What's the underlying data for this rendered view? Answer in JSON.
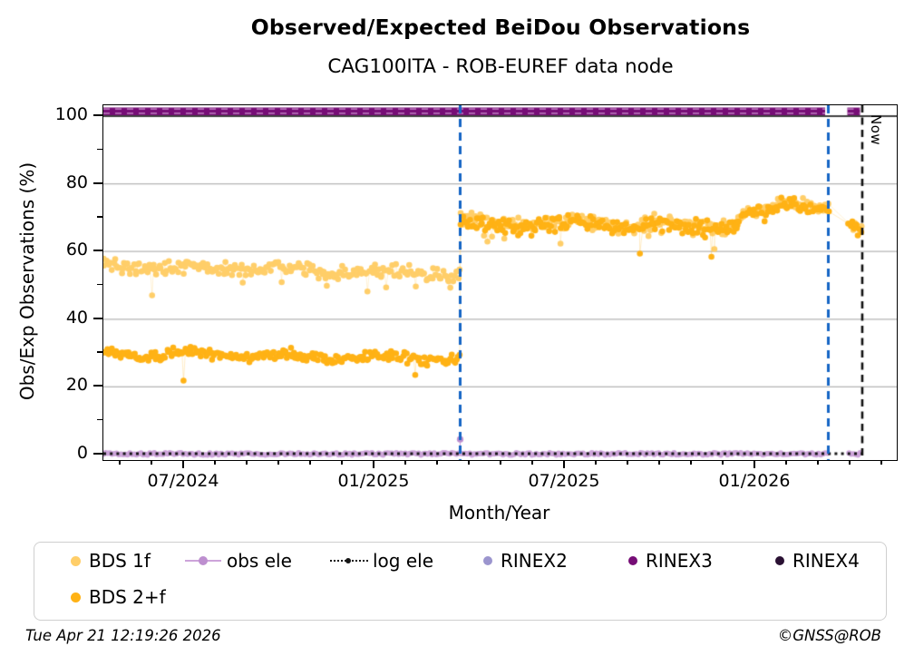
{
  "title": "Observed/Expected BeiDou Observations",
  "subtitle": "CAG100ITA - ROB-EUREF data node",
  "now_label": "Now",
  "footer": {
    "timestamp": "Tue Apr 21 12:19:26 2026",
    "copyright": "©GNSS@ROB"
  },
  "axes": {
    "ylabel": "Obs/Exp Observations (%)",
    "xlabel": "Month/Year",
    "yticks": [
      0,
      20,
      40,
      60,
      80,
      100
    ],
    "yminor": [
      10,
      30,
      50,
      70,
      90
    ],
    "xtick_labels": [
      "07/2024",
      "01/2025",
      "07/2025",
      "01/2026"
    ]
  },
  "legend": {
    "items": [
      {
        "label": "BDS 1f"
      },
      {
        "label": "obs ele"
      },
      {
        "label": "log ele"
      },
      {
        "label": "RINEX2"
      },
      {
        "label": "RINEX3"
      },
      {
        "label": "RINEX4"
      },
      {
        "label": "BDS 2+f"
      }
    ]
  },
  "colors": {
    "bds1f": "#ffce69",
    "bds2f": "#ffb215",
    "obsele": "#cda4da",
    "obsele_dot": "#bd8fcf",
    "logele": "#151515",
    "rinex2": "#9b95ce",
    "rinex3": "#760d76",
    "rinex4": "#2a1133",
    "event_blue": "#1565c5",
    "now_black": "#111111",
    "grid": "#b3b3b3",
    "ref100": "#000000"
  },
  "chart_data": {
    "type": "scatter",
    "title": "Observed/Expected BeiDou Observations",
    "subtitle": "CAG100ITA - ROB-EUREF data node",
    "xlabel": "Month/Year",
    "ylabel": "Obs/Exp Observations (%)",
    "x_unit": "months relative to 2024-07-01",
    "xlim": [
      -2.55,
      22.45
    ],
    "ylim": [
      -1.6,
      103.2
    ],
    "xticks": {
      "positions": [
        0,
        6,
        12,
        18
      ],
      "labels": [
        "07/2024",
        "01/2025",
        "07/2025",
        "01/2026"
      ],
      "minor_interval_months": 1
    },
    "yticks": [
      0,
      20,
      40,
      60,
      80,
      100
    ],
    "grid": "horizontal gray at 20/40/60/80, black reference line at 100",
    "legend_position": "below plot, two rows",
    "vlines": [
      {
        "x": 8.7,
        "approx_date": "late Mar 2025",
        "style": "dashed",
        "color_key": "event_blue"
      },
      {
        "x": 20.3,
        "approx_date": "mid Mar 2026",
        "style": "dashed",
        "color_key": "event_blue"
      },
      {
        "x": 21.37,
        "approx_date": "Apr 21 2026",
        "style": "dashed",
        "color_key": "now_black",
        "label": "Now"
      }
    ],
    "series": [
      {
        "name": "BDS 1f",
        "color_key": "bds1f",
        "marker": "circle",
        "segments": [
          {
            "x0": -2.55,
            "x1": 8.68,
            "y0": 55.8,
            "y1": 53.3,
            "jitter": 1.9,
            "n": 235
          },
          {
            "x0": 8.72,
            "x1": 17.4,
            "y0": 68.6,
            "y1": 67.9,
            "jitter": 2.0,
            "n": 182
          },
          {
            "x0": 17.4,
            "x1": 19.2,
            "y0": 69.5,
            "y1": 75.2,
            "jitter": 1.9,
            "n": 38
          },
          {
            "x0": 19.2,
            "x1": 20.3,
            "y0": 75.2,
            "y1": 73.2,
            "jitter": 1.6,
            "n": 23
          },
          {
            "x0": 20.95,
            "x1": 21.35,
            "y0": 67.5,
            "y1": 66.0,
            "jitter": 1.3,
            "n": 8
          }
        ]
      },
      {
        "name": "BDS 2+f",
        "color_key": "bds2f",
        "marker": "circle",
        "segments": [
          {
            "x0": -2.55,
            "x1": 8.68,
            "y0": 29.9,
            "y1": 28.4,
            "jitter": 1.4,
            "n": 235
          },
          {
            "x0": 8.72,
            "x1": 17.4,
            "y0": 68.0,
            "y1": 67.4,
            "jitter": 2.1,
            "n": 182
          },
          {
            "x0": 17.4,
            "x1": 19.2,
            "y0": 69.0,
            "y1": 74.6,
            "jitter": 2.0,
            "n": 38
          },
          {
            "x0": 19.2,
            "x1": 20.3,
            "y0": 74.6,
            "y1": 72.6,
            "jitter": 1.7,
            "n": 23
          },
          {
            "x0": 20.95,
            "x1": 21.35,
            "y0": 66.8,
            "y1": 65.2,
            "jitter": 1.4,
            "n": 8
          }
        ]
      },
      {
        "name": "obs ele",
        "color_key": "obsele",
        "marker": "dense dots on zero line",
        "y": 0.2,
        "x_ranges": [
          [
            -2.55,
            20.3
          ],
          [
            20.95,
            21.35
          ]
        ],
        "spike": {
          "x": 8.7,
          "y": 4.5
        }
      },
      {
        "name": "log ele",
        "color_key": "logele",
        "marker": "black dotted line",
        "y": 0.3,
        "x_ranges": [
          [
            -2.55,
            21.37
          ]
        ]
      },
      {
        "name": "RINEX2",
        "color_key": "rinex2",
        "marker": "circle",
        "segments": []
      },
      {
        "name": "RINEX3",
        "color_key": "rinex3",
        "marker": "thick band of dots",
        "y": 101.4,
        "band_height_pct": 2.2,
        "x_ranges": [
          [
            -2.55,
            20.2
          ],
          [
            20.9,
            21.3
          ]
        ]
      },
      {
        "name": "RINEX4",
        "color_key": "rinex4",
        "marker": "circle",
        "segments": []
      }
    ],
    "outliers": {
      "rate": 0.03,
      "extra_drop_min": 2,
      "extra_drop_max": 7
    }
  }
}
